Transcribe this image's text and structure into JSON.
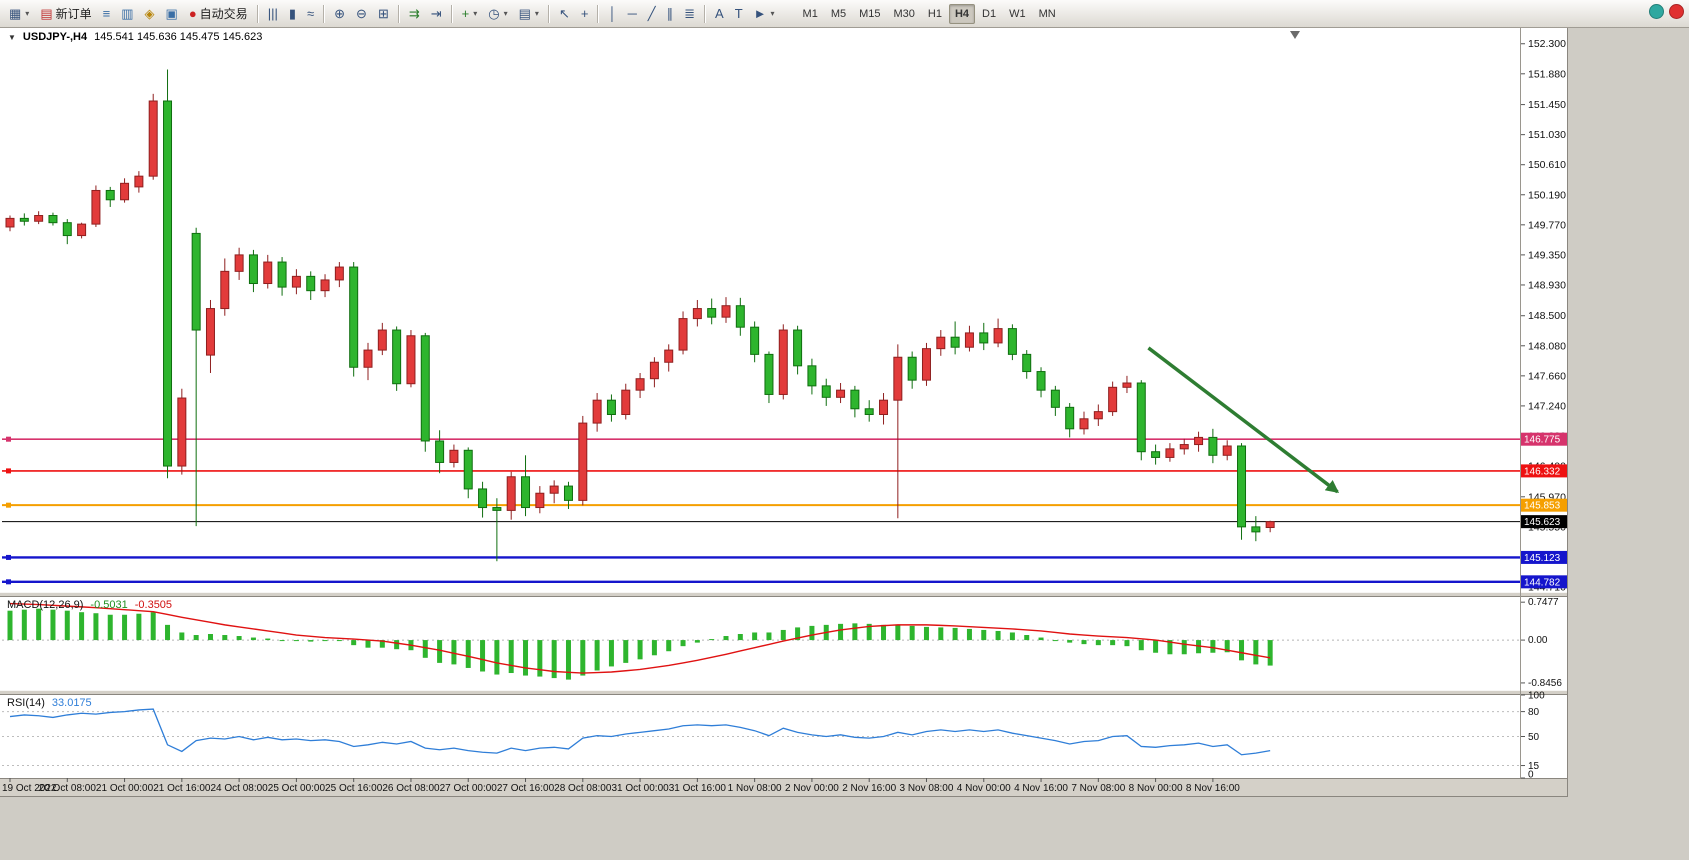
{
  "toolbar": {
    "icons": [
      {
        "name": "chart-window-icon",
        "glyph": "▦",
        "dropdown": true
      },
      {
        "name": "new-order-button",
        "glyph": "▤",
        "glyph_color": "#c03030",
        "label": "新订单"
      },
      {
        "name": "market-watch-icon",
        "glyph": "≡",
        "glyph_color": "#3a6ea5"
      },
      {
        "name": "data-window-icon",
        "glyph": "▥",
        "glyph_color": "#3a6ea5"
      },
      {
        "name": "navigator-icon",
        "glyph": "◈",
        "glyph_color": "#b8860b"
      },
      {
        "name": "terminal-icon",
        "glyph": "▣",
        "glyph_color": "#3a6ea5"
      },
      {
        "name": "autotrading-button",
        "glyph": "●",
        "glyph_color": "#cc2222",
        "label": "自动交易"
      },
      {
        "sep": true
      },
      {
        "name": "bar-chart-icon",
        "glyph": "|||"
      },
      {
        "name": "candlestick-chart-icon",
        "glyph": "▮"
      },
      {
        "name": "line-chart-icon",
        "glyph": "≈"
      },
      {
        "sep": true
      },
      {
        "name": "zoom-in-icon",
        "glyph": "⊕"
      },
      {
        "name": "zoom-out-icon",
        "glyph": "⊖"
      },
      {
        "name": "tile-windows-icon",
        "glyph": "⊞"
      },
      {
        "sep": true
      },
      {
        "name": "auto-scroll-icon",
        "glyph": "⇉",
        "glyph_color": "#2a7d2a"
      },
      {
        "name": "chart-shift-icon",
        "glyph": "⇥"
      },
      {
        "sep": true
      },
      {
        "name": "indicators-icon",
        "glyph": "+",
        "glyph_color": "#2a7d2a",
        "dropdown": true
      },
      {
        "name": "periods-icon",
        "glyph": "◷",
        "dropdown": true
      },
      {
        "name": "templates-icon",
        "glyph": "▤",
        "dropdown": true
      },
      {
        "sep": true
      },
      {
        "name": "cursor-icon",
        "glyph": "↖"
      },
      {
        "name": "crosshair-icon",
        "glyph": "+"
      },
      {
        "sep": true
      },
      {
        "name": "vertical-line-icon",
        "glyph": "│"
      },
      {
        "name": "horizontal-line-icon",
        "glyph": "─"
      },
      {
        "name": "trendline-icon",
        "glyph": "╱"
      },
      {
        "name": "channel-icon",
        "glyph": "∥"
      },
      {
        "name": "fibonacci-icon",
        "glyph": "≣"
      },
      {
        "sep": true
      },
      {
        "name": "text-icon",
        "glyph": "A"
      },
      {
        "name": "text-label-icon",
        "glyph": "T"
      },
      {
        "name": "arrows-icon",
        "glyph": "►",
        "dropdown": true
      }
    ],
    "timeframes": [
      "M1",
      "M5",
      "M15",
      "M30",
      "H1",
      "H4",
      "D1",
      "W1",
      "MN"
    ],
    "active_timeframe": "H4",
    "window_icons": [
      {
        "name": "community-icon",
        "color": "#2fa8a0"
      },
      {
        "name": "notification-icon",
        "color": "#e03030"
      }
    ]
  },
  "chart": {
    "symbol_period": "USDJPY-,H4",
    "ohlc_text": "145.541 145.636 145.475 145.623"
  },
  "chart_data": {
    "type": "candlestick",
    "symbol": "USDJPY-",
    "timeframe": "H4",
    "quote": {
      "open": 145.541,
      "high": 145.636,
      "low": 145.475,
      "close": 145.623
    },
    "colors": {
      "up": "#e23b3b",
      "down": "#2eb52e",
      "macd_hist": "#2eb52e",
      "macd_signal": "#e01212",
      "rsi_line": "#2f7ed8",
      "arrow": "#2e7d32"
    },
    "price_axis_labels": [
      "152.300",
      "151.880",
      "151.450",
      "151.030",
      "150.610",
      "150.190",
      "149.770",
      "149.350",
      "148.930",
      "148.500",
      "148.080",
      "147.660",
      "147.240",
      "146.820",
      "146.400",
      "145.970",
      "145.550",
      "145.130",
      "144.710"
    ],
    "levels": [
      {
        "price": 146.775,
        "label": "146.775",
        "color": "#d6336c",
        "width": 1.6
      },
      {
        "price": 146.332,
        "label": "146.332",
        "color": "#ee1111",
        "width": 1.6
      },
      {
        "price": 145.853,
        "label": "145.853",
        "color": "#f59f00",
        "width": 2
      },
      {
        "price": 145.123,
        "label": "145.123",
        "color": "#1515cc",
        "width": 2.4
      },
      {
        "price": 144.782,
        "label": "144.782",
        "color": "#1515cc",
        "width": 2.4
      }
    ],
    "current_price": {
      "price": 145.623,
      "label": "145.623",
      "color": "#000000"
    },
    "arrow": {
      "from_index": 79.5,
      "from_price": 148.05,
      "to_index": 92.7,
      "to_price": 146.04,
      "color": "#2e7d32"
    },
    "time_labels": [
      "19 Oct 2022",
      "20 Oct 08:00",
      "21 Oct 00:00",
      "21 Oct 16:00",
      "24 Oct 08:00",
      "25 Oct 00:00",
      "25 Oct 16:00",
      "26 Oct 08:00",
      "27 Oct 00:00",
      "27 Oct 16:00",
      "28 Oct 08:00",
      "31 Oct 00:00",
      "31 Oct 16:00",
      "1 Nov 08:00",
      "2 Nov 00:00",
      "2 Nov 16:00",
      "3 Nov 08:00",
      "4 Nov 00:00",
      "4 Nov 16:00",
      "7 Nov 08:00",
      "8 Nov 00:00",
      "8 Nov 16:00"
    ],
    "time_label_step": 4,
    "candles": [
      [
        149.74,
        149.9,
        149.68,
        149.86
      ],
      [
        149.86,
        149.93,
        149.76,
        149.82
      ],
      [
        149.82,
        149.96,
        149.78,
        149.9
      ],
      [
        149.9,
        149.94,
        149.76,
        149.8
      ],
      [
        149.8,
        149.85,
        149.5,
        149.62
      ],
      [
        149.62,
        149.8,
        149.58,
        149.78
      ],
      [
        149.78,
        150.32,
        149.74,
        150.25
      ],
      [
        150.25,
        150.3,
        150.02,
        150.12
      ],
      [
        150.12,
        150.42,
        150.08,
        150.35
      ],
      [
        150.3,
        150.52,
        150.22,
        150.45
      ],
      [
        150.45,
        151.6,
        150.4,
        151.5
      ],
      [
        151.5,
        151.94,
        146.23,
        146.4
      ],
      [
        146.4,
        147.48,
        146.28,
        147.35
      ],
      [
        149.65,
        149.73,
        145.56,
        148.3
      ],
      [
        147.95,
        148.72,
        147.7,
        148.6
      ],
      [
        148.6,
        149.3,
        148.5,
        149.12
      ],
      [
        149.12,
        149.45,
        149.0,
        149.35
      ],
      [
        149.35,
        149.42,
        148.83,
        148.95
      ],
      [
        148.95,
        149.35,
        148.88,
        149.25
      ],
      [
        149.25,
        149.32,
        148.78,
        148.9
      ],
      [
        148.9,
        149.15,
        148.8,
        149.05
      ],
      [
        149.05,
        149.12,
        148.72,
        148.85
      ],
      [
        148.85,
        149.08,
        148.76,
        149.0
      ],
      [
        149.0,
        149.25,
        148.9,
        149.18
      ],
      [
        149.18,
        149.25,
        147.65,
        147.78
      ],
      [
        147.78,
        148.12,
        147.6,
        148.02
      ],
      [
        148.02,
        148.4,
        147.95,
        148.3
      ],
      [
        148.3,
        148.35,
        147.45,
        147.55
      ],
      [
        147.55,
        148.3,
        147.5,
        148.22
      ],
      [
        148.22,
        148.26,
        146.6,
        146.75
      ],
      [
        146.75,
        146.9,
        146.3,
        146.45
      ],
      [
        146.45,
        146.7,
        146.38,
        146.62
      ],
      [
        146.62,
        146.66,
        145.95,
        146.08
      ],
      [
        146.08,
        146.18,
        145.68,
        145.82
      ],
      [
        145.82,
        145.95,
        145.07,
        145.78
      ],
      [
        145.78,
        146.32,
        145.65,
        146.25
      ],
      [
        146.25,
        146.55,
        145.7,
        145.82
      ],
      [
        145.82,
        146.12,
        145.74,
        146.02
      ],
      [
        146.02,
        146.2,
        145.88,
        146.12
      ],
      [
        146.12,
        146.18,
        145.8,
        145.92
      ],
      [
        145.92,
        147.1,
        145.85,
        147.0
      ],
      [
        147.0,
        147.42,
        146.88,
        147.32
      ],
      [
        147.32,
        147.4,
        147.02,
        147.12
      ],
      [
        147.12,
        147.55,
        147.05,
        147.46
      ],
      [
        147.46,
        147.7,
        147.35,
        147.62
      ],
      [
        147.62,
        147.92,
        147.5,
        147.85
      ],
      [
        147.85,
        148.1,
        147.72,
        148.02
      ],
      [
        148.02,
        148.56,
        147.96,
        148.46
      ],
      [
        148.46,
        148.72,
        148.35,
        148.6
      ],
      [
        148.6,
        148.74,
        148.38,
        148.48
      ],
      [
        148.48,
        148.76,
        148.4,
        148.64
      ],
      [
        148.64,
        148.75,
        148.22,
        148.34
      ],
      [
        148.34,
        148.42,
        147.85,
        147.96
      ],
      [
        147.96,
        148.0,
        147.28,
        147.4
      ],
      [
        147.4,
        148.38,
        147.33,
        148.3
      ],
      [
        148.3,
        148.36,
        147.68,
        147.8
      ],
      [
        147.8,
        147.9,
        147.4,
        147.52
      ],
      [
        147.52,
        147.62,
        147.24,
        147.36
      ],
      [
        147.36,
        147.56,
        147.28,
        147.46
      ],
      [
        147.46,
        147.52,
        147.08,
        147.2
      ],
      [
        147.2,
        147.32,
        147.02,
        147.12
      ],
      [
        147.12,
        147.42,
        146.98,
        147.32
      ],
      [
        147.32,
        148.1,
        145.67,
        147.92
      ],
      [
        147.92,
        148.0,
        147.48,
        147.6
      ],
      [
        147.6,
        148.12,
        147.52,
        148.04
      ],
      [
        148.04,
        148.3,
        147.94,
        148.2
      ],
      [
        148.2,
        148.42,
        147.96,
        148.06
      ],
      [
        148.06,
        148.36,
        148.0,
        148.26
      ],
      [
        148.26,
        148.4,
        148.02,
        148.12
      ],
      [
        148.12,
        148.46,
        148.06,
        148.32
      ],
      [
        148.32,
        148.38,
        147.88,
        147.96
      ],
      [
        147.96,
        148.02,
        147.62,
        147.72
      ],
      [
        147.72,
        147.78,
        147.36,
        147.46
      ],
      [
        147.46,
        147.52,
        147.1,
        147.22
      ],
      [
        147.22,
        147.28,
        146.8,
        146.92
      ],
      [
        146.92,
        147.16,
        146.84,
        147.06
      ],
      [
        147.06,
        147.26,
        146.96,
        147.16
      ],
      [
        147.16,
        147.58,
        147.1,
        147.5
      ],
      [
        147.5,
        147.66,
        147.42,
        147.56
      ],
      [
        147.56,
        147.6,
        146.48,
        146.6
      ],
      [
        146.6,
        146.7,
        146.42,
        146.52
      ],
      [
        146.52,
        146.72,
        146.46,
        146.64
      ],
      [
        146.64,
        146.78,
        146.56,
        146.7
      ],
      [
        146.7,
        146.88,
        146.6,
        146.8
      ],
      [
        146.8,
        146.92,
        146.44,
        146.55
      ],
      [
        146.55,
        146.76,
        146.48,
        146.68
      ],
      [
        146.68,
        146.72,
        145.37,
        145.55
      ],
      [
        145.55,
        145.7,
        145.35,
        145.48
      ],
      [
        145.541,
        145.636,
        145.475,
        145.623
      ]
    ],
    "macd": {
      "label": "MACD(12,26,9)",
      "value_main": "-0.5031",
      "value_signal": "-0.3505",
      "axis": [
        {
          "label": "0.7477",
          "value": 0.7477
        },
        {
          "label": "0.00",
          "value": 0
        },
        {
          "label": "-0.8456",
          "value": -0.8456
        }
      ],
      "histogram": [
        0.58,
        0.6,
        0.62,
        0.6,
        0.58,
        0.55,
        0.53,
        0.5,
        0.5,
        0.52,
        0.55,
        0.3,
        0.15,
        0.1,
        0.12,
        0.1,
        0.08,
        0.05,
        0.03,
        0.0,
        -0.02,
        -0.03,
        -0.02,
        0.0,
        -0.1,
        -0.15,
        -0.15,
        -0.18,
        -0.2,
        -0.35,
        -0.45,
        -0.48,
        -0.55,
        -0.62,
        -0.68,
        -0.65,
        -0.7,
        -0.72,
        -0.75,
        -0.78,
        -0.7,
        -0.6,
        -0.52,
        -0.45,
        -0.38,
        -0.3,
        -0.22,
        -0.12,
        -0.05,
        0.02,
        0.08,
        0.12,
        0.15,
        0.15,
        0.2,
        0.25,
        0.28,
        0.3,
        0.32,
        0.33,
        0.32,
        0.3,
        0.3,
        0.28,
        0.26,
        0.25,
        0.24,
        0.22,
        0.2,
        0.18,
        0.15,
        0.1,
        0.05,
        0.0,
        -0.05,
        -0.08,
        -0.1,
        -0.1,
        -0.12,
        -0.2,
        -0.25,
        -0.28,
        -0.28,
        -0.26,
        -0.25,
        -0.24,
        -0.4,
        -0.48,
        -0.5031
      ],
      "signal": [
        0.72,
        0.71,
        0.7,
        0.685,
        0.67,
        0.655,
        0.64,
        0.62,
        0.6,
        0.58,
        0.56,
        0.505,
        0.45,
        0.4,
        0.35,
        0.3,
        0.26,
        0.22,
        0.18,
        0.14,
        0.1,
        0.075,
        0.05,
        0.035,
        0.02,
        0.0,
        -0.02,
        -0.06,
        -0.1,
        -0.15,
        -0.2,
        -0.26,
        -0.32,
        -0.385,
        -0.45,
        -0.5,
        -0.55,
        -0.585,
        -0.62,
        -0.635,
        -0.65,
        -0.64,
        -0.63,
        -0.605,
        -0.58,
        -0.54,
        -0.5,
        -0.45,
        -0.4,
        -0.34,
        -0.28,
        -0.215,
        -0.15,
        -0.085,
        -0.02,
        0.04,
        0.1,
        0.15,
        0.2,
        0.235,
        0.27,
        0.285,
        0.3,
        0.3,
        0.3,
        0.29,
        0.28,
        0.265,
        0.25,
        0.235,
        0.22,
        0.2,
        0.18,
        0.15,
        0.12,
        0.1,
        0.08,
        0.065,
        0.05,
        0.025,
        0.0,
        -0.04,
        -0.08,
        -0.115,
        -0.15,
        -0.2,
        -0.25,
        -0.3,
        -0.3505
      ]
    },
    "rsi": {
      "label": "RSI(14)",
      "value": "33.0175",
      "axis": [
        {
          "label": "100",
          "value": 100
        },
        {
          "label": "80",
          "value": 80
        },
        {
          "label": "50",
          "value": 50
        },
        {
          "label": "15",
          "value": 15
        },
        {
          "label": "0",
          "value": 0
        }
      ],
      "level_lines": [
        80,
        50,
        15
      ],
      "series": [
        74,
        76,
        75,
        73,
        76,
        78,
        77,
        79,
        80,
        82,
        83,
        40,
        32,
        45,
        48,
        47,
        50,
        46,
        49,
        46,
        47,
        45,
        46,
        44,
        38,
        40,
        43,
        41,
        44,
        36,
        34,
        36,
        33,
        31,
        30,
        36,
        33,
        36,
        37,
        35,
        48,
        51,
        50,
        53,
        55,
        57,
        59,
        63,
        64,
        63,
        64,
        61,
        57,
        51,
        60,
        55,
        52,
        50,
        52,
        49,
        48,
        50,
        55,
        52,
        56,
        58,
        56,
        58,
        56,
        58,
        54,
        51,
        48,
        45,
        41,
        44,
        45,
        50,
        51,
        38,
        37,
        39,
        40,
        42,
        38,
        40,
        28,
        30,
        33.02
      ]
    }
  }
}
